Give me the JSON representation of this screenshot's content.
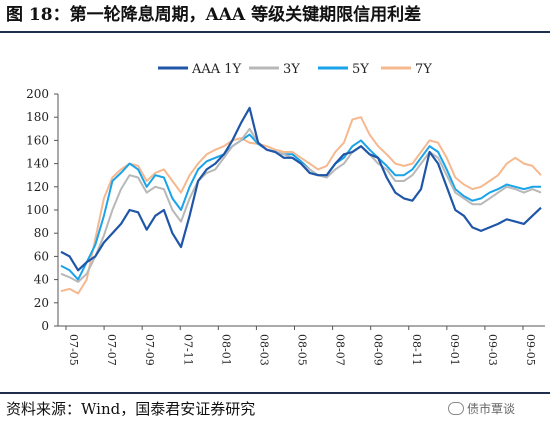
{
  "title": "图 18：第一轮降息周期，AAA 等级关键期限信用利差",
  "source": "资料来源：Wind，国泰君安证券研究",
  "watermark": "债市覃谈",
  "chart_data": {
    "type": "line",
    "title": "",
    "xlabel": "",
    "ylabel": "",
    "ylim": [
      0,
      200
    ],
    "yticks": [
      0,
      20,
      40,
      60,
      80,
      100,
      120,
      140,
      160,
      180,
      200
    ],
    "x_tick_labels": [
      "07-05",
      "07-07",
      "07-09",
      "07-11",
      "08-01",
      "08-03",
      "08-05",
      "08-07",
      "08-09",
      "08-11",
      "09-01",
      "09-03",
      "09-05"
    ],
    "legend_position": "top",
    "grid": false,
    "colors": {
      "AAA 1Y": "#1f56a8",
      "3Y": "#b8b8b8",
      "5Y": "#19a3e8",
      "7Y": "#f5b88f"
    },
    "series": [
      {
        "name": "AAA 1Y",
        "values": [
          64,
          60,
          48,
          55,
          60,
          72,
          80,
          88,
          100,
          98,
          83,
          95,
          100,
          80,
          68,
          95,
          125,
          135,
          140,
          148,
          160,
          175,
          188,
          158,
          152,
          150,
          145,
          145,
          140,
          132,
          130,
          130,
          140,
          148,
          150,
          155,
          148,
          145,
          128,
          115,
          110,
          108,
          118,
          150,
          140,
          120,
          100,
          95,
          85,
          82,
          85,
          88,
          92,
          90,
          88,
          95,
          102
        ]
      },
      {
        "name": "3Y",
        "values": [
          45,
          42,
          38,
          45,
          60,
          78,
          100,
          118,
          130,
          128,
          115,
          120,
          118,
          100,
          90,
          110,
          125,
          132,
          135,
          145,
          155,
          160,
          170,
          158,
          152,
          150,
          148,
          145,
          140,
          135,
          130,
          128,
          135,
          140,
          150,
          155,
          148,
          140,
          135,
          125,
          125,
          130,
          140,
          150,
          145,
          130,
          115,
          110,
          105,
          105,
          110,
          115,
          120,
          118,
          115,
          118,
          115
        ]
      },
      {
        "name": "5Y",
        "values": [
          52,
          48,
          40,
          55,
          70,
          95,
          125,
          132,
          140,
          135,
          120,
          130,
          128,
          110,
          100,
          120,
          135,
          142,
          145,
          148,
          155,
          160,
          165,
          157,
          152,
          150,
          148,
          148,
          142,
          135,
          130,
          130,
          140,
          145,
          155,
          160,
          152,
          145,
          138,
          130,
          130,
          135,
          145,
          155,
          150,
          135,
          118,
          112,
          108,
          110,
          115,
          118,
          122,
          120,
          118,
          120,
          120
        ]
      },
      {
        "name": "7Y",
        "values": [
          30,
          32,
          28,
          40,
          75,
          110,
          128,
          135,
          140,
          138,
          125,
          132,
          135,
          125,
          115,
          130,
          140,
          148,
          152,
          155,
          160,
          162,
          158,
          157,
          155,
          152,
          150,
          150,
          145,
          140,
          135,
          138,
          150,
          158,
          178,
          180,
          165,
          155,
          148,
          140,
          138,
          140,
          150,
          160,
          158,
          145,
          128,
          122,
          118,
          120,
          125,
          130,
          140,
          145,
          140,
          138,
          130
        ]
      }
    ]
  }
}
